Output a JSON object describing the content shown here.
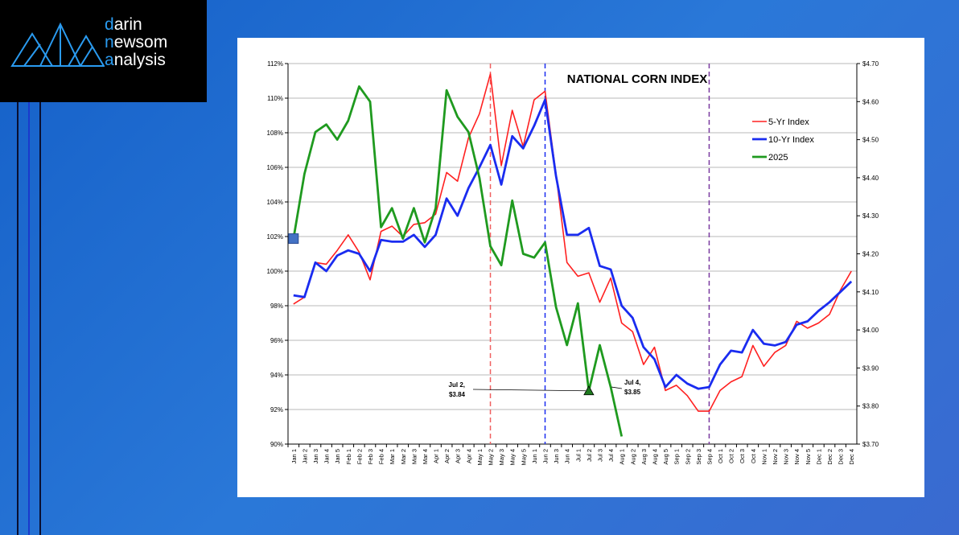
{
  "logo": {
    "lines": [
      "darin",
      "newsom",
      "analysis"
    ]
  },
  "chart_data": {
    "type": "line",
    "title": "NATIONAL CORN INDEX",
    "categories": [
      "Jan 1",
      "Jan 2",
      "Jan 3",
      "Jan 4",
      "Jan 5",
      "Feb 1",
      "Feb 2",
      "Feb 3",
      "Feb 4",
      "Mar 1",
      "Mar 2",
      "Mar 3",
      "Mar 4",
      "Apr 1",
      "Apr 2",
      "Apr 3",
      "Apr 4",
      "May 1",
      "May 2",
      "May 3",
      "May 4",
      "May 5",
      "Jun 1",
      "Jun 2",
      "Jun 3",
      "Jun 4",
      "Jul 1",
      "Jul 2",
      "Jul 3",
      "Jul 4",
      "Aug 1",
      "Aug 2",
      "Aug 3",
      "Aug 4",
      "Aug 5",
      "Sep 1",
      "Sep 2",
      "Sep 3",
      "Sep 4",
      "Oct 1",
      "Oct 2",
      "Oct 3",
      "Oct 4",
      "Nov 1",
      "Nov 2",
      "Nov 3",
      "Nov 4",
      "Nov 5",
      "Dec 1",
      "Dec 2",
      "Dec 3",
      "Dec 4"
    ],
    "series": [
      {
        "name": "5-Yr Index",
        "color": "#ff2020",
        "values": [
          98.1,
          98.5,
          100.5,
          100.4,
          101.2,
          102.1,
          101.1,
          99.5,
          102.3,
          102.6,
          102.0,
          102.7,
          102.8,
          103.3,
          105.7,
          105.2,
          107.7,
          109.1,
          111.4,
          106.1,
          109.3,
          107.2,
          109.9,
          110.4,
          105.6,
          100.5,
          99.7,
          99.9,
          98.2,
          99.6,
          97.0,
          96.5,
          94.6,
          95.6,
          93.1,
          93.4,
          92.8,
          91.9,
          91.9,
          93.1,
          93.6,
          93.9,
          95.7,
          94.5,
          95.3,
          95.7,
          97.1,
          96.7,
          97.0,
          97.5,
          98.9,
          100.0
        ]
      },
      {
        "name": "10-Yr Index",
        "color": "#1a2cf0",
        "values": [
          98.6,
          98.5,
          100.5,
          100.0,
          100.9,
          101.2,
          101.0,
          100.0,
          101.8,
          101.7,
          101.7,
          102.1,
          101.4,
          102.1,
          104.2,
          103.2,
          104.8,
          106.0,
          107.3,
          105.0,
          107.8,
          107.1,
          108.4,
          109.9,
          105.5,
          102.1,
          102.1,
          102.5,
          100.3,
          100.1,
          98.0,
          97.3,
          95.6,
          94.9,
          93.3,
          94.0,
          93.5,
          93.2,
          93.3,
          94.6,
          95.4,
          95.3,
          96.6,
          95.8,
          95.7,
          95.9,
          96.9,
          97.1,
          97.7,
          98.2,
          98.8,
          99.4
        ]
      },
      {
        "name": "2025",
        "color": "#1f9a1f",
        "axis": "y2",
        "values": [
          4.24,
          4.41,
          4.52,
          4.54,
          4.5,
          4.55,
          4.64,
          4.6,
          4.27,
          4.32,
          4.24,
          4.32,
          4.23,
          4.32,
          4.63,
          4.56,
          4.52,
          4.4,
          4.22,
          4.17,
          4.34,
          4.2,
          4.19,
          4.23,
          4.06,
          3.96,
          4.07,
          3.84,
          3.96,
          3.85,
          3.72,
          null,
          null,
          null,
          null,
          null,
          null,
          null,
          null,
          null,
          null,
          null,
          null,
          null,
          null,
          null,
          null,
          null,
          null,
          null,
          null,
          null
        ]
      }
    ],
    "ylim": [
      90,
      112
    ],
    "yticks": [
      {
        "value": 90,
        "label": "90%"
      },
      {
        "value": 92,
        "label": "92%"
      },
      {
        "value": 94,
        "label": "94%"
      },
      {
        "value": 96,
        "label": "96%"
      },
      {
        "value": 98,
        "label": "98%"
      },
      {
        "value": 100,
        "label": "100%"
      },
      {
        "value": 102,
        "label": "102%"
      },
      {
        "value": 104,
        "label": "104%"
      },
      {
        "value": 106,
        "label": "106%"
      },
      {
        "value": 108,
        "label": "108%"
      },
      {
        "value": 110,
        "label": "110%"
      },
      {
        "value": 112,
        "label": "112%"
      }
    ],
    "y2lim": [
      3.7,
      4.7
    ],
    "y2ticks": [
      {
        "value": 3.7,
        "label": "$3.70"
      },
      {
        "value": 3.8,
        "label": "$3.80"
      },
      {
        "value": 3.9,
        "label": "$3.90"
      },
      {
        "value": 4.0,
        "label": "$4.00"
      },
      {
        "value": 4.1,
        "label": "$4.10"
      },
      {
        "value": 4.2,
        "label": "$4.20"
      },
      {
        "value": 4.3,
        "label": "$4.30"
      },
      {
        "value": 4.4,
        "label": "$4.40"
      },
      {
        "value": 4.5,
        "label": "$4.50"
      },
      {
        "value": 4.6,
        "label": "$4.60"
      },
      {
        "value": 4.7,
        "label": "$4.70"
      }
    ],
    "grid": true,
    "legend": "upper right",
    "vlines": [
      {
        "x": "May 2",
        "color": "#f06060"
      },
      {
        "x": "Jun 2",
        "color": "#1a2cf0"
      },
      {
        "x": "Sep 4",
        "color": "#7a3aa0"
      }
    ],
    "annotations": [
      {
        "text": [
          "Jul 2,",
          "$3.84"
        ],
        "x": "Jul 2"
      },
      {
        "text": [
          "Jul 4,",
          "$3.85"
        ],
        "x": "Jul 4"
      }
    ]
  }
}
